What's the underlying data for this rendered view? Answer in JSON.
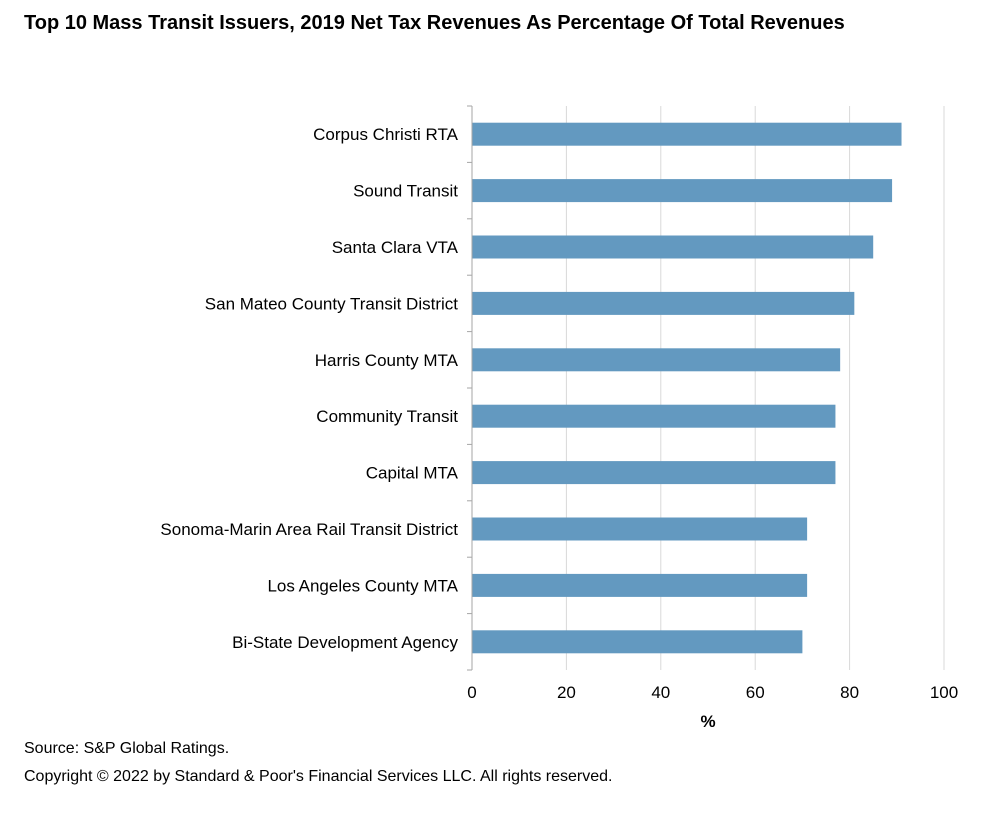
{
  "chart_data": {
    "type": "bar",
    "orientation": "horizontal",
    "title": "Top 10 Mass Transit Issuers, 2019 Net Tax Revenues As Percentage Of Total Revenues",
    "categories": [
      "Corpus Christi RTA",
      "Sound Transit",
      "Santa Clara VTA",
      "San Mateo County Transit District",
      "Harris County MTA",
      "Community Transit",
      "Capital MTA",
      "Sonoma-Marin Area Rail Transit District",
      "Los Angeles County MTA",
      "Bi-State Development Agency"
    ],
    "values": [
      91,
      89,
      85,
      81,
      78,
      77,
      77,
      71,
      71,
      70
    ],
    "xlabel": "%",
    "ylabel": "",
    "xlim": [
      0,
      100
    ],
    "xticks": [
      "0",
      "20",
      "40",
      "60",
      "80",
      "100"
    ],
    "grid": "vertical",
    "bar_color": "#6399C0"
  },
  "footer": {
    "source": "Source: S&P Global Ratings.",
    "copyright": "Copyright © 2022 by Standard & Poor's Financial Services LLC. All rights reserved."
  }
}
